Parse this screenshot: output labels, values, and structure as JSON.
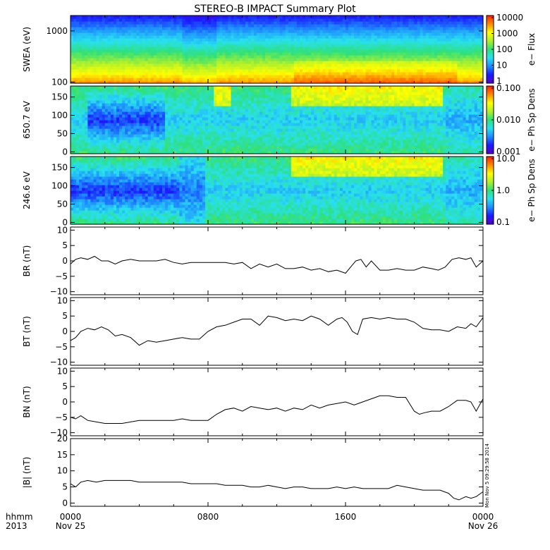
{
  "title": "STEREO-B IMPACT Summary Plot",
  "timestamp_stamp": "Mon Nov 5 09:29:58 2014",
  "x_axis": {
    "row1_label": "hhmm",
    "row2_label": "2013",
    "ticks": [
      {
        "t": 0,
        "line1": "0000",
        "line2": "Nov 25"
      },
      {
        "t": 8,
        "line1": "0800",
        "line2": ""
      },
      {
        "t": 16,
        "line1": "1600",
        "line2": ""
      },
      {
        "t": 24,
        "line1": "0000",
        "line2": "Nov 26"
      }
    ]
  },
  "colors": {
    "line": "#000000",
    "spectrogram_scale": [
      "#5a00c8",
      "#1a1aff",
      "#1e8cff",
      "#29e0f0",
      "#2fe07a",
      "#aef02d",
      "#ffff00",
      "#ff8a00",
      "#ff2000"
    ]
  },
  "chart_data": [
    {
      "type": "heatmap",
      "name": "swea_flux",
      "ylabel": "SWEA (eV)",
      "ylog": true,
      "ylim": [
        95,
        2000
      ],
      "yticks": [
        {
          "v": 100,
          "label": "100"
        },
        {
          "v": 1000,
          "label": "1000"
        }
      ],
      "colorbar": {
        "label": "e− Flux",
        "scale": "log",
        "ticks": [
          "1",
          "10",
          "100",
          "1000",
          "10000"
        ]
      },
      "description_values": {
        "low_energy_level": 0.88,
        "high_energy_level": 0.12,
        "enhanced_intervals_hours": [
          [
            13,
            22.5
          ]
        ]
      }
    },
    {
      "type": "heatmap",
      "name": "pad_650",
      "ylabel": "650.7 eV",
      "ylim": [
        -5,
        180
      ],
      "yticks": [
        {
          "v": 0,
          "label": "0"
        },
        {
          "v": 50,
          "label": "50"
        },
        {
          "v": 100,
          "label": "100"
        },
        {
          "v": 150,
          "label": "150"
        }
      ],
      "colorbar": {
        "label": "e− Ph Sp Dens",
        "scale": "log",
        "ticks": [
          "0.001",
          "0.010",
          "0.100"
        ]
      },
      "description_values": {
        "strahl_intervals_hours": [
          [
            8.3,
            9.3
          ],
          [
            12.8,
            21.7
          ]
        ],
        "depleted_center_hours": [
          [
            1,
            5.5
          ]
        ]
      }
    },
    {
      "type": "heatmap",
      "name": "pad_246",
      "ylabel": "246.6 eV",
      "ylim": [
        -5,
        180
      ],
      "yticks": [
        {
          "v": 0,
          "label": "0"
        },
        {
          "v": 50,
          "label": "50"
        },
        {
          "v": 100,
          "label": "100"
        },
        {
          "v": 150,
          "label": "150"
        }
      ],
      "colorbar": {
        "label": "e− Ph Sp Dens",
        "scale": "log",
        "ticks": [
          "0.1",
          "1.0",
          "10.0"
        ]
      },
      "description_values": {
        "strahl_intervals_hours": [
          [
            12.8,
            21.7
          ]
        ],
        "depleted_center_hours": [
          [
            0,
            6.3
          ]
        ]
      }
    },
    {
      "type": "line",
      "name": "BR",
      "ylabel": "BR (nT)",
      "ylim": [
        -11,
        11
      ],
      "yticks": [
        {
          "v": -10,
          "label": "−10"
        },
        {
          "v": -5,
          "label": "−5"
        },
        {
          "v": 0,
          "label": "0"
        },
        {
          "v": 5,
          "label": "5"
        },
        {
          "v": 10,
          "label": "10"
        }
      ],
      "x": [
        0,
        0.3,
        0.6,
        1.0,
        1.4,
        1.8,
        2.2,
        2.6,
        3.0,
        3.5,
        4.0,
        4.5,
        5.0,
        5.5,
        6.0,
        6.5,
        7.0,
        7.5,
        8.0,
        8.5,
        9.0,
        9.5,
        10.0,
        10.5,
        11.0,
        11.5,
        12.0,
        12.5,
        13.0,
        13.5,
        14.0,
        14.5,
        15.0,
        15.5,
        16.0,
        16.3,
        16.6,
        16.9,
        17.2,
        17.5,
        18.0,
        18.5,
        19.0,
        19.5,
        20.0,
        20.5,
        21.0,
        21.4,
        21.8,
        22.2,
        22.6,
        23.0,
        23.3,
        23.6,
        24.0
      ],
      "y": [
        -1,
        0.5,
        1,
        0.5,
        1.5,
        0,
        0,
        -1,
        0,
        0.5,
        0,
        0,
        0,
        0.5,
        -0.5,
        -1,
        -0.5,
        -0.5,
        -0.5,
        -0.5,
        -0.5,
        -1,
        -0.5,
        -2.5,
        -1,
        -2,
        -1,
        -2.5,
        -2.5,
        -2,
        -3,
        -2.5,
        -3.5,
        -3,
        -4,
        -2,
        0,
        0.5,
        -2,
        0,
        -3,
        -3,
        -2.5,
        -3,
        -3,
        -2,
        -2.5,
        -3,
        -2,
        0.5,
        1,
        0.5,
        1,
        -2,
        0
      ]
    },
    {
      "type": "line",
      "name": "BT",
      "ylabel": "BT (nT)",
      "ylim": [
        -11,
        11
      ],
      "yticks": [
        {
          "v": -10,
          "label": "−10"
        },
        {
          "v": -5,
          "label": "−5"
        },
        {
          "v": 0,
          "label": "0"
        },
        {
          "v": 5,
          "label": "5"
        },
        {
          "v": 10,
          "label": "10"
        }
      ],
      "x": [
        0,
        0.3,
        0.6,
        1.0,
        1.4,
        1.8,
        2.2,
        2.6,
        3.0,
        3.5,
        4.0,
        4.5,
        5.0,
        5.5,
        6.0,
        6.5,
        7.0,
        7.5,
        8.0,
        8.5,
        9.0,
        9.5,
        10.0,
        10.5,
        11.0,
        11.5,
        12.0,
        12.5,
        13.0,
        13.5,
        14.0,
        14.5,
        15.0,
        15.5,
        15.8,
        16.1,
        16.4,
        16.7,
        17.0,
        17.5,
        18.0,
        18.5,
        19.0,
        19.5,
        20.0,
        20.5,
        21.0,
        21.5,
        22.0,
        22.5,
        23.0,
        23.3,
        23.6,
        24.0
      ],
      "y": [
        -3,
        -2,
        0,
        1,
        0.5,
        1.5,
        0.5,
        -1.5,
        -1,
        -2,
        -4.5,
        -3,
        -3.5,
        -3,
        -2.5,
        -2,
        -2.5,
        -2.5,
        0,
        1.5,
        2,
        3,
        4,
        4,
        2,
        5,
        4.5,
        3.5,
        4,
        3.5,
        5,
        4,
        2,
        4,
        4.5,
        3,
        0,
        -1,
        4,
        4.5,
        4,
        4.5,
        4,
        4,
        3,
        1,
        0.5,
        0.5,
        0,
        1.5,
        1,
        2.5,
        1.5,
        4.5
      ]
    },
    {
      "type": "line",
      "name": "BN",
      "ylabel": "BN (nT)",
      "ylim": [
        -11,
        11
      ],
      "yticks": [
        {
          "v": -10,
          "label": "−10"
        },
        {
          "v": -5,
          "label": "−5"
        },
        {
          "v": 0,
          "label": "0"
        },
        {
          "v": 5,
          "label": "5"
        },
        {
          "v": 10,
          "label": "10"
        }
      ],
      "x": [
        0,
        0.3,
        0.6,
        1.0,
        1.5,
        2.0,
        2.5,
        3.0,
        3.5,
        4.0,
        4.5,
        5.0,
        5.5,
        6.0,
        6.5,
        7.0,
        7.5,
        8.0,
        8.5,
        9.0,
        9.5,
        10.0,
        10.5,
        11.0,
        11.5,
        12.0,
        12.5,
        13.0,
        13.5,
        14.0,
        14.5,
        15.0,
        15.5,
        16.0,
        16.5,
        17.0,
        17.5,
        18.0,
        18.5,
        19.0,
        19.5,
        20.0,
        20.3,
        20.6,
        21.0,
        21.5,
        22.0,
        22.5,
        23.0,
        23.3,
        23.6,
        24.0
      ],
      "y": [
        -5,
        -5.5,
        -4.5,
        -6,
        -6.5,
        -7,
        -7,
        -7,
        -6.5,
        -6,
        -6,
        -6,
        -6,
        -6,
        -5.5,
        -6,
        -6,
        -6,
        -4,
        -2.5,
        -2,
        -3,
        -1.5,
        -2,
        -2.5,
        -2,
        -3,
        -2,
        -2.5,
        -1,
        -2,
        -1,
        -0.5,
        0,
        -1,
        0,
        1,
        2,
        2,
        1.5,
        1.5,
        -3,
        -4,
        -3.5,
        -3,
        -3,
        -1.5,
        0.5,
        0.5,
        0,
        -3,
        1
      ]
    },
    {
      "type": "line",
      "name": "B_mag",
      "ylabel": "|B| (nT)",
      "ylim": [
        -1,
        20
      ],
      "yticks": [
        {
          "v": 0,
          "label": "0"
        },
        {
          "v": 5,
          "label": "5"
        },
        {
          "v": 10,
          "label": "10"
        },
        {
          "v": 15,
          "label": "15"
        },
        {
          "v": 20,
          "label": "20"
        }
      ],
      "x": [
        0,
        0.3,
        0.6,
        1.0,
        1.5,
        2.0,
        2.5,
        3.0,
        3.5,
        4.0,
        4.5,
        5.0,
        5.5,
        6.0,
        6.5,
        7.0,
        7.5,
        8.0,
        8.5,
        9.0,
        9.5,
        10.0,
        10.5,
        11.0,
        11.5,
        12.0,
        12.5,
        13.0,
        13.5,
        14.0,
        14.5,
        15.0,
        15.5,
        16.0,
        16.5,
        17.0,
        17.5,
        18.0,
        18.5,
        19.0,
        19.5,
        20.0,
        20.5,
        21.0,
        21.5,
        22.0,
        22.3,
        22.6,
        23.0,
        23.3,
        23.6,
        24.0
      ],
      "y": [
        6,
        5,
        6.5,
        7,
        6.5,
        7,
        7,
        7,
        7,
        6.5,
        6.5,
        6.5,
        6.5,
        6.5,
        6.5,
        6,
        6,
        6,
        6,
        5.5,
        5.5,
        5.5,
        5,
        5,
        5.5,
        5,
        4.5,
        5,
        5,
        4.5,
        4.5,
        4.5,
        5,
        4.5,
        5,
        4.5,
        4.5,
        4.5,
        4.5,
        5.5,
        5,
        4.5,
        4,
        4,
        4,
        3,
        1.5,
        1,
        2,
        1.5,
        2,
        3.5
      ]
    }
  ]
}
